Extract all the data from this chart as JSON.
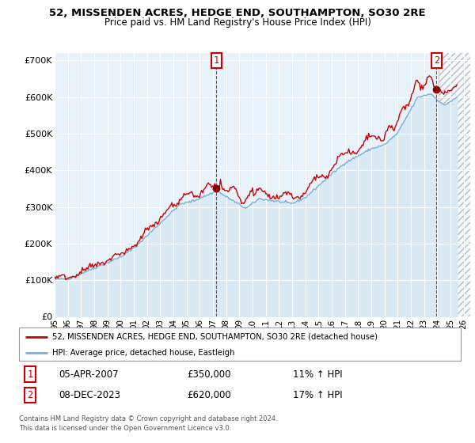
{
  "title": "52, MISSENDEN ACRES, HEDGE END, SOUTHAMPTON, SO30 2RE",
  "subtitle": "Price paid vs. HM Land Registry's House Price Index (HPI)",
  "legend_line1": "52, MISSENDEN ACRES, HEDGE END, SOUTHAMPTON, SO30 2RE (detached house)",
  "legend_line2": "HPI: Average price, detached house, Eastleigh",
  "annotation1_date": "05-APR-2007",
  "annotation1_price": "£350,000",
  "annotation1_hpi": "11% ↑ HPI",
  "annotation2_date": "08-DEC-2023",
  "annotation2_price": "£620,000",
  "annotation2_hpi": "17% ↑ HPI",
  "footnote": "Contains HM Land Registry data © Crown copyright and database right 2024.\nThis data is licensed under the Open Government Licence v3.0.",
  "hpi_color": "#7bafd4",
  "hpi_fill_color": "#daeaf5",
  "price_color": "#cc0000",
  "annotation_color": "#cc0000",
  "background_color": "#ffffff",
  "chart_bg_color": "#e8f2fa",
  "grid_color": "#ffffff",
  "ylim": [
    0,
    720000
  ],
  "yticks": [
    0,
    100000,
    200000,
    300000,
    400000,
    500000,
    600000,
    700000
  ],
  "ytick_labels": [
    "£0",
    "£100K",
    "£200K",
    "£300K",
    "£400K",
    "£500K",
    "£600K",
    "£700K"
  ],
  "sale1_x": 2007.27,
  "sale1_y": 350000,
  "sale2_x": 2023.94,
  "sale2_y": 620000,
  "xmin": 1995,
  "xmax": 2026.5
}
